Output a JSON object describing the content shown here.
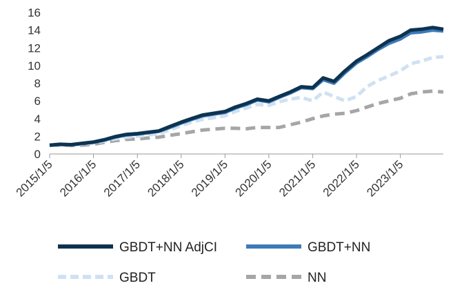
{
  "chart_data": {
    "type": "line",
    "title": "",
    "xlabel": "",
    "ylabel": "",
    "ylim": [
      0,
      16
    ],
    "yticks": [
      0,
      2,
      4,
      6,
      8,
      10,
      12,
      14,
      16
    ],
    "xlim": [
      "2015/1/5",
      "2023/12/29"
    ],
    "xticks": [
      "2015/1/5",
      "2016/1/5",
      "2017/1/5",
      "2018/1/5",
      "2019/1/5",
      "2020/1/5",
      "2021/1/5",
      "2022/1/5",
      "2023/1/5"
    ],
    "grid": false,
    "legend": "bottom",
    "series": [
      {
        "name": "GBDT+NN AdjCI",
        "color": "#0d3350",
        "dash": "solid",
        "points": [
          [
            "2015/1/5",
            1.0
          ],
          [
            "2015/4/1",
            1.1
          ],
          [
            "2015/7/1",
            1.05
          ],
          [
            "2015/10/1",
            1.2
          ],
          [
            "2016/1/5",
            1.35
          ],
          [
            "2016/4/1",
            1.6
          ],
          [
            "2016/7/1",
            1.95
          ],
          [
            "2016/10/1",
            2.2
          ],
          [
            "2017/1/5",
            2.3
          ],
          [
            "2017/4/1",
            2.45
          ],
          [
            "2017/7/1",
            2.6
          ],
          [
            "2017/10/1",
            3.1
          ],
          [
            "2018/1/5",
            3.6
          ],
          [
            "2018/4/1",
            4.0
          ],
          [
            "2018/7/1",
            4.4
          ],
          [
            "2018/10/1",
            4.6
          ],
          [
            "2019/1/5",
            4.8
          ],
          [
            "2019/4/1",
            5.3
          ],
          [
            "2019/7/1",
            5.7
          ],
          [
            "2019/10/1",
            6.2
          ],
          [
            "2020/1/5",
            6.0
          ],
          [
            "2020/4/1",
            6.5
          ],
          [
            "2020/7/1",
            7.0
          ],
          [
            "2020/10/1",
            7.6
          ],
          [
            "2021/1/5",
            7.5
          ],
          [
            "2021/4/1",
            8.6
          ],
          [
            "2021/7/1",
            8.2
          ],
          [
            "2021/10/1",
            9.4
          ],
          [
            "2022/1/5",
            10.5
          ],
          [
            "2022/4/1",
            11.2
          ],
          [
            "2022/7/1",
            12.0
          ],
          [
            "2022/10/1",
            12.8
          ],
          [
            "2023/1/5",
            13.3
          ],
          [
            "2023/4/1",
            14.0
          ],
          [
            "2023/7/1",
            14.1
          ],
          [
            "2023/10/1",
            14.3
          ],
          [
            "2023/12/29",
            14.1
          ]
        ]
      },
      {
        "name": "GBDT+NN",
        "color": "#3d7ab8",
        "dash": "solid",
        "points": [
          [
            "2015/1/5",
            1.0
          ],
          [
            "2015/4/1",
            1.08
          ],
          [
            "2015/7/1",
            1.03
          ],
          [
            "2015/10/1",
            1.18
          ],
          [
            "2016/1/5",
            1.32
          ],
          [
            "2016/4/1",
            1.55
          ],
          [
            "2016/7/1",
            1.9
          ],
          [
            "2016/10/1",
            2.15
          ],
          [
            "2017/1/5",
            2.25
          ],
          [
            "2017/4/1",
            2.4
          ],
          [
            "2017/7/1",
            2.55
          ],
          [
            "2017/10/1",
            3.0
          ],
          [
            "2018/1/5",
            3.5
          ],
          [
            "2018/4/1",
            3.9
          ],
          [
            "2018/7/1",
            4.3
          ],
          [
            "2018/10/1",
            4.5
          ],
          [
            "2019/1/5",
            4.7
          ],
          [
            "2019/4/1",
            5.2
          ],
          [
            "2019/7/1",
            5.6
          ],
          [
            "2019/10/1",
            6.1
          ],
          [
            "2020/1/5",
            5.9
          ],
          [
            "2020/4/1",
            6.4
          ],
          [
            "2020/7/1",
            6.9
          ],
          [
            "2020/10/1",
            7.5
          ],
          [
            "2021/1/5",
            7.4
          ],
          [
            "2021/4/1",
            8.4
          ],
          [
            "2021/7/1",
            8.0
          ],
          [
            "2021/10/1",
            9.2
          ],
          [
            "2022/1/5",
            10.3
          ],
          [
            "2022/4/1",
            11.0
          ],
          [
            "2022/7/1",
            11.8
          ],
          [
            "2022/10/1",
            12.5
          ],
          [
            "2023/1/5",
            13.0
          ],
          [
            "2023/4/1",
            13.7
          ],
          [
            "2023/7/1",
            13.8
          ],
          [
            "2023/10/1",
            14.0
          ],
          [
            "2023/12/29",
            13.9
          ]
        ]
      },
      {
        "name": "GBDT",
        "color": "#cfe1f2",
        "dash": "12 6",
        "points": [
          [
            "2015/1/5",
            1.0
          ],
          [
            "2015/4/1",
            1.05
          ],
          [
            "2015/7/1",
            1.0
          ],
          [
            "2015/10/1",
            1.1
          ],
          [
            "2016/1/5",
            1.25
          ],
          [
            "2016/4/1",
            1.45
          ],
          [
            "2016/7/1",
            1.7
          ],
          [
            "2016/10/1",
            1.9
          ],
          [
            "2017/1/5",
            2.0
          ],
          [
            "2017/4/1",
            2.15
          ],
          [
            "2017/7/1",
            2.3
          ],
          [
            "2017/10/1",
            2.7
          ],
          [
            "2018/1/5",
            3.2
          ],
          [
            "2018/4/1",
            3.6
          ],
          [
            "2018/7/1",
            3.9
          ],
          [
            "2018/10/1",
            4.1
          ],
          [
            "2019/1/5",
            4.3
          ],
          [
            "2019/4/1",
            4.8
          ],
          [
            "2019/7/1",
            5.2
          ],
          [
            "2019/10/1",
            5.6
          ],
          [
            "2020/1/5",
            5.5
          ],
          [
            "2020/4/1",
            5.9
          ],
          [
            "2020/7/1",
            6.2
          ],
          [
            "2020/10/1",
            6.4
          ],
          [
            "2021/1/5",
            6.0
          ],
          [
            "2021/4/1",
            7.0
          ],
          [
            "2021/7/1",
            6.5
          ],
          [
            "2021/10/1",
            6.0
          ],
          [
            "2022/1/5",
            6.5
          ],
          [
            "2022/4/1",
            7.6
          ],
          [
            "2022/7/1",
            8.3
          ],
          [
            "2022/10/1",
            8.8
          ],
          [
            "2023/1/5",
            9.4
          ],
          [
            "2023/4/1",
            10.2
          ],
          [
            "2023/7/1",
            10.5
          ],
          [
            "2023/10/1",
            10.9
          ],
          [
            "2023/12/29",
            11.0
          ]
        ]
      },
      {
        "name": "NN",
        "color": "#a6a6a6",
        "dash": "14 8",
        "points": [
          [
            "2015/1/5",
            1.0
          ],
          [
            "2015/4/1",
            1.0
          ],
          [
            "2015/7/1",
            0.95
          ],
          [
            "2015/10/1",
            1.0
          ],
          [
            "2016/1/5",
            1.1
          ],
          [
            "2016/4/1",
            1.3
          ],
          [
            "2016/7/1",
            1.5
          ],
          [
            "2016/10/1",
            1.65
          ],
          [
            "2017/1/5",
            1.7
          ],
          [
            "2017/4/1",
            1.8
          ],
          [
            "2017/7/1",
            1.9
          ],
          [
            "2017/10/1",
            2.1
          ],
          [
            "2018/1/5",
            2.3
          ],
          [
            "2018/4/1",
            2.5
          ],
          [
            "2018/7/1",
            2.7
          ],
          [
            "2018/10/1",
            2.8
          ],
          [
            "2019/1/5",
            2.9
          ],
          [
            "2019/4/1",
            2.9
          ],
          [
            "2019/7/1",
            2.85
          ],
          [
            "2019/10/1",
            3.0
          ],
          [
            "2020/1/5",
            3.0
          ],
          [
            "2020/4/1",
            3.0
          ],
          [
            "2020/7/1",
            3.3
          ],
          [
            "2020/10/1",
            3.6
          ],
          [
            "2021/1/5",
            4.0
          ],
          [
            "2021/4/1",
            4.3
          ],
          [
            "2021/7/1",
            4.5
          ],
          [
            "2021/10/1",
            4.6
          ],
          [
            "2022/1/5",
            4.9
          ],
          [
            "2022/4/1",
            5.3
          ],
          [
            "2022/7/1",
            5.7
          ],
          [
            "2022/10/1",
            6.0
          ],
          [
            "2023/1/5",
            6.3
          ],
          [
            "2023/4/1",
            6.8
          ],
          [
            "2023/7/1",
            7.0
          ],
          [
            "2023/10/1",
            7.1
          ],
          [
            "2023/12/29",
            7.0
          ]
        ]
      }
    ]
  }
}
